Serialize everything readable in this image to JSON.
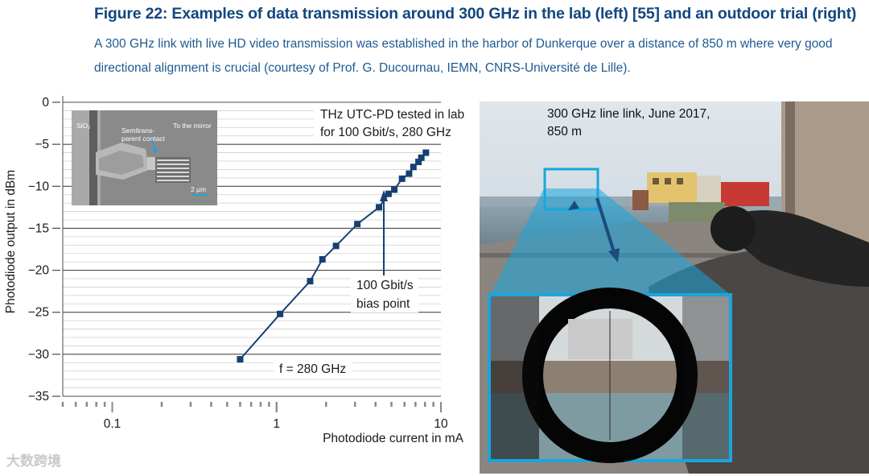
{
  "figure": {
    "title": "Figure 22: Examples of data transmission around 300 GHz in the lab (left) [55] and an outdoor trial (right)",
    "caption": "A 300 GHz link with live HD video transmission was established in the harbor of Dunkerque over a distance of 850 m where very good directional alignment is crucial (courtesy of Prof. G. Ducournau, IEMN, CNRS-Université de Lille)."
  },
  "inset": {
    "label_material": "SiO₂",
    "label_contact": "Semitrans-\nparent contact",
    "label_contact_1": "Semitrans-",
    "label_contact_2": "parent contact",
    "label_mirror": "To the mirror",
    "scale": "2 µm"
  },
  "photo": {
    "caption_line1": "300 GHz line link, June 2017,",
    "caption_line2": "850 m"
  },
  "watermark": "大数跨境",
  "colors": {
    "series": "#163f73",
    "title": "#12477f",
    "caption": "#1d5a93",
    "highlight": "#1aa5dc"
  },
  "chart_data": {
    "type": "line",
    "xscale": "log",
    "xlim": [
      0.05,
      10
    ],
    "ylim": [
      -35,
      0
    ],
    "xlabel": "Photodiode current in mA",
    "ylabel": "Photodiode output in dBm",
    "xticks": [
      "0.1",
      "1",
      "10"
    ],
    "yticks": [
      "0",
      "−5",
      "−10",
      "−15",
      "−20",
      "−25",
      "−30",
      "−35"
    ],
    "grid": true,
    "annotations": {
      "top_line1": "THz UTC-PD tested in lab",
      "top_line2": "for 100 Gbit/s, 280 GHz",
      "bias_line1": "100 Gbit/s",
      "bias_line2": "bias point",
      "freq": "f = 280 GHz"
    },
    "series": [
      {
        "x": [
          0.6,
          1.05,
          1.6,
          1.9,
          2.3,
          3.1,
          4.2,
          4.8,
          5.2,
          5.8,
          6.4,
          6.8,
          7.3,
          7.6,
          8.1
        ],
        "y": [
          -30.6,
          -25.2,
          -21.3,
          -18.7,
          -17.1,
          -14.5,
          -12.5,
          -10.9,
          -10.4,
          -9.1,
          -8.5,
          -7.7,
          -7.1,
          -6.6,
          -6.0
        ]
      }
    ]
  }
}
